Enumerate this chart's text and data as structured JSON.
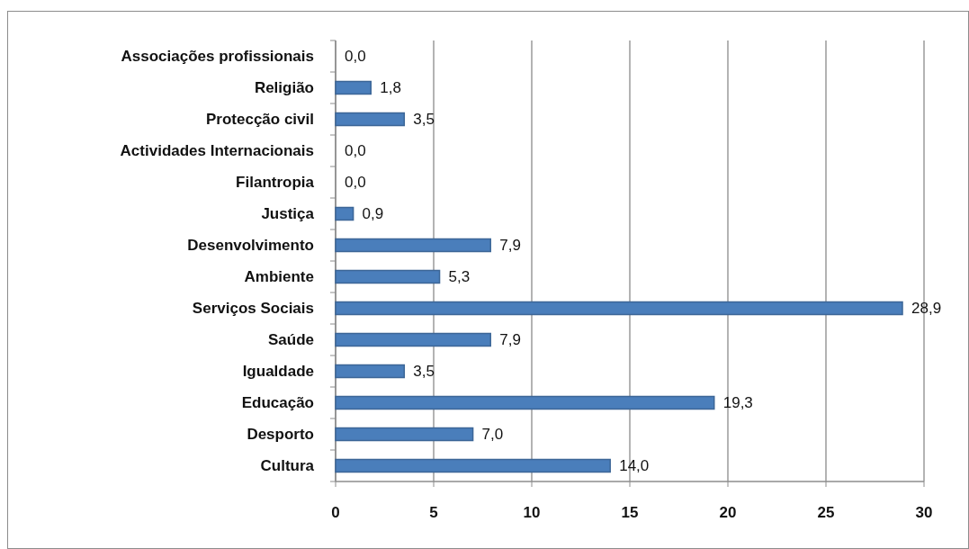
{
  "chart_data": {
    "type": "bar",
    "orientation": "horizontal",
    "categories": [
      "Associações profissionais",
      "Religião",
      "Protecção civil",
      "Actividades Internacionais",
      "Filantropia",
      "Justiça",
      "Desenvolvimento",
      "Ambiente",
      "Serviços Sociais",
      "Saúde",
      "Igualdade",
      "Educação",
      "Desporto",
      "Cultura"
    ],
    "values": [
      0.0,
      1.8,
      3.5,
      0.0,
      0.0,
      0.9,
      7.9,
      5.3,
      28.9,
      7.9,
      3.5,
      19.3,
      7.0,
      14.0
    ],
    "value_labels": [
      "0,0",
      "1,8",
      "3,5",
      "0,0",
      "0,0",
      "0,9",
      "7,9",
      "5,3",
      "28,9",
      "7,9",
      "3,5",
      "19,3",
      "7,0",
      "14,0"
    ],
    "color": "#4a7ebb",
    "xlim": [
      0,
      30
    ],
    "xticks": [
      0,
      5,
      10,
      15,
      20,
      25,
      30
    ],
    "grid": "x"
  }
}
